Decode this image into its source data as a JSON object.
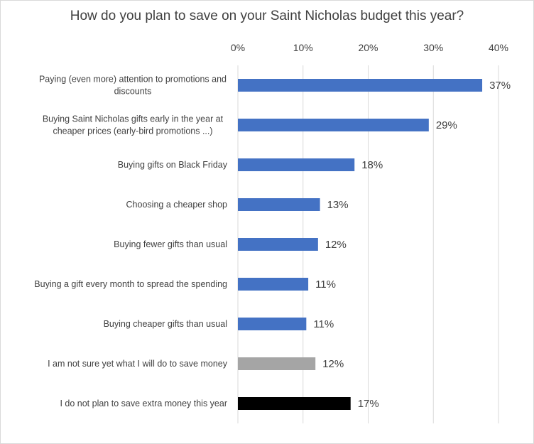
{
  "chart_data": {
    "type": "bar",
    "orientation": "horizontal",
    "title": "How do you plan to save on your Saint Nicholas budget this year?",
    "xlabel": "",
    "ylabel": "",
    "xlim": [
      0,
      40
    ],
    "ticks": [
      "0%",
      "10%",
      "20%",
      "30%",
      "40%"
    ],
    "tick_values": [
      0,
      10,
      20,
      30,
      40
    ],
    "grid": true,
    "legend": "none",
    "categories": [
      [
        "Paying (even more) attention to promotions and",
        "discounts"
      ],
      [
        "Buying Saint Nicholas gifts early in the year at",
        "cheaper prices (early-bird promotions ...)"
      ],
      [
        "Buying gifts on Black Friday"
      ],
      [
        "Choosing a cheaper shop"
      ],
      [
        "Buying fewer gifts than usual"
      ],
      [
        "Buying a gift every month to spread the spending"
      ],
      [
        "Buying cheaper gifts than usual"
      ],
      [
        "I am not sure yet what I will do to save money"
      ],
      [
        "I do not plan to save extra money this year"
      ]
    ],
    "values": [
      37,
      29,
      18,
      13,
      12,
      11,
      11,
      12,
      17
    ],
    "bar_lengths": [
      37.5,
      29.3,
      17.9,
      12.6,
      12.3,
      10.8,
      10.5,
      11.9,
      17.3
    ],
    "labels": [
      "37%",
      "29%",
      "18%",
      "13%",
      "12%",
      "11%",
      "11%",
      "12%",
      "17%"
    ],
    "colors": [
      "#4472c4",
      "#4472c4",
      "#4472c4",
      "#4472c4",
      "#4472c4",
      "#4472c4",
      "#4472c4",
      "#a5a5a5",
      "#000000"
    ]
  },
  "colors": {
    "gridline": "#d9d9d9",
    "text": "#404040"
  }
}
